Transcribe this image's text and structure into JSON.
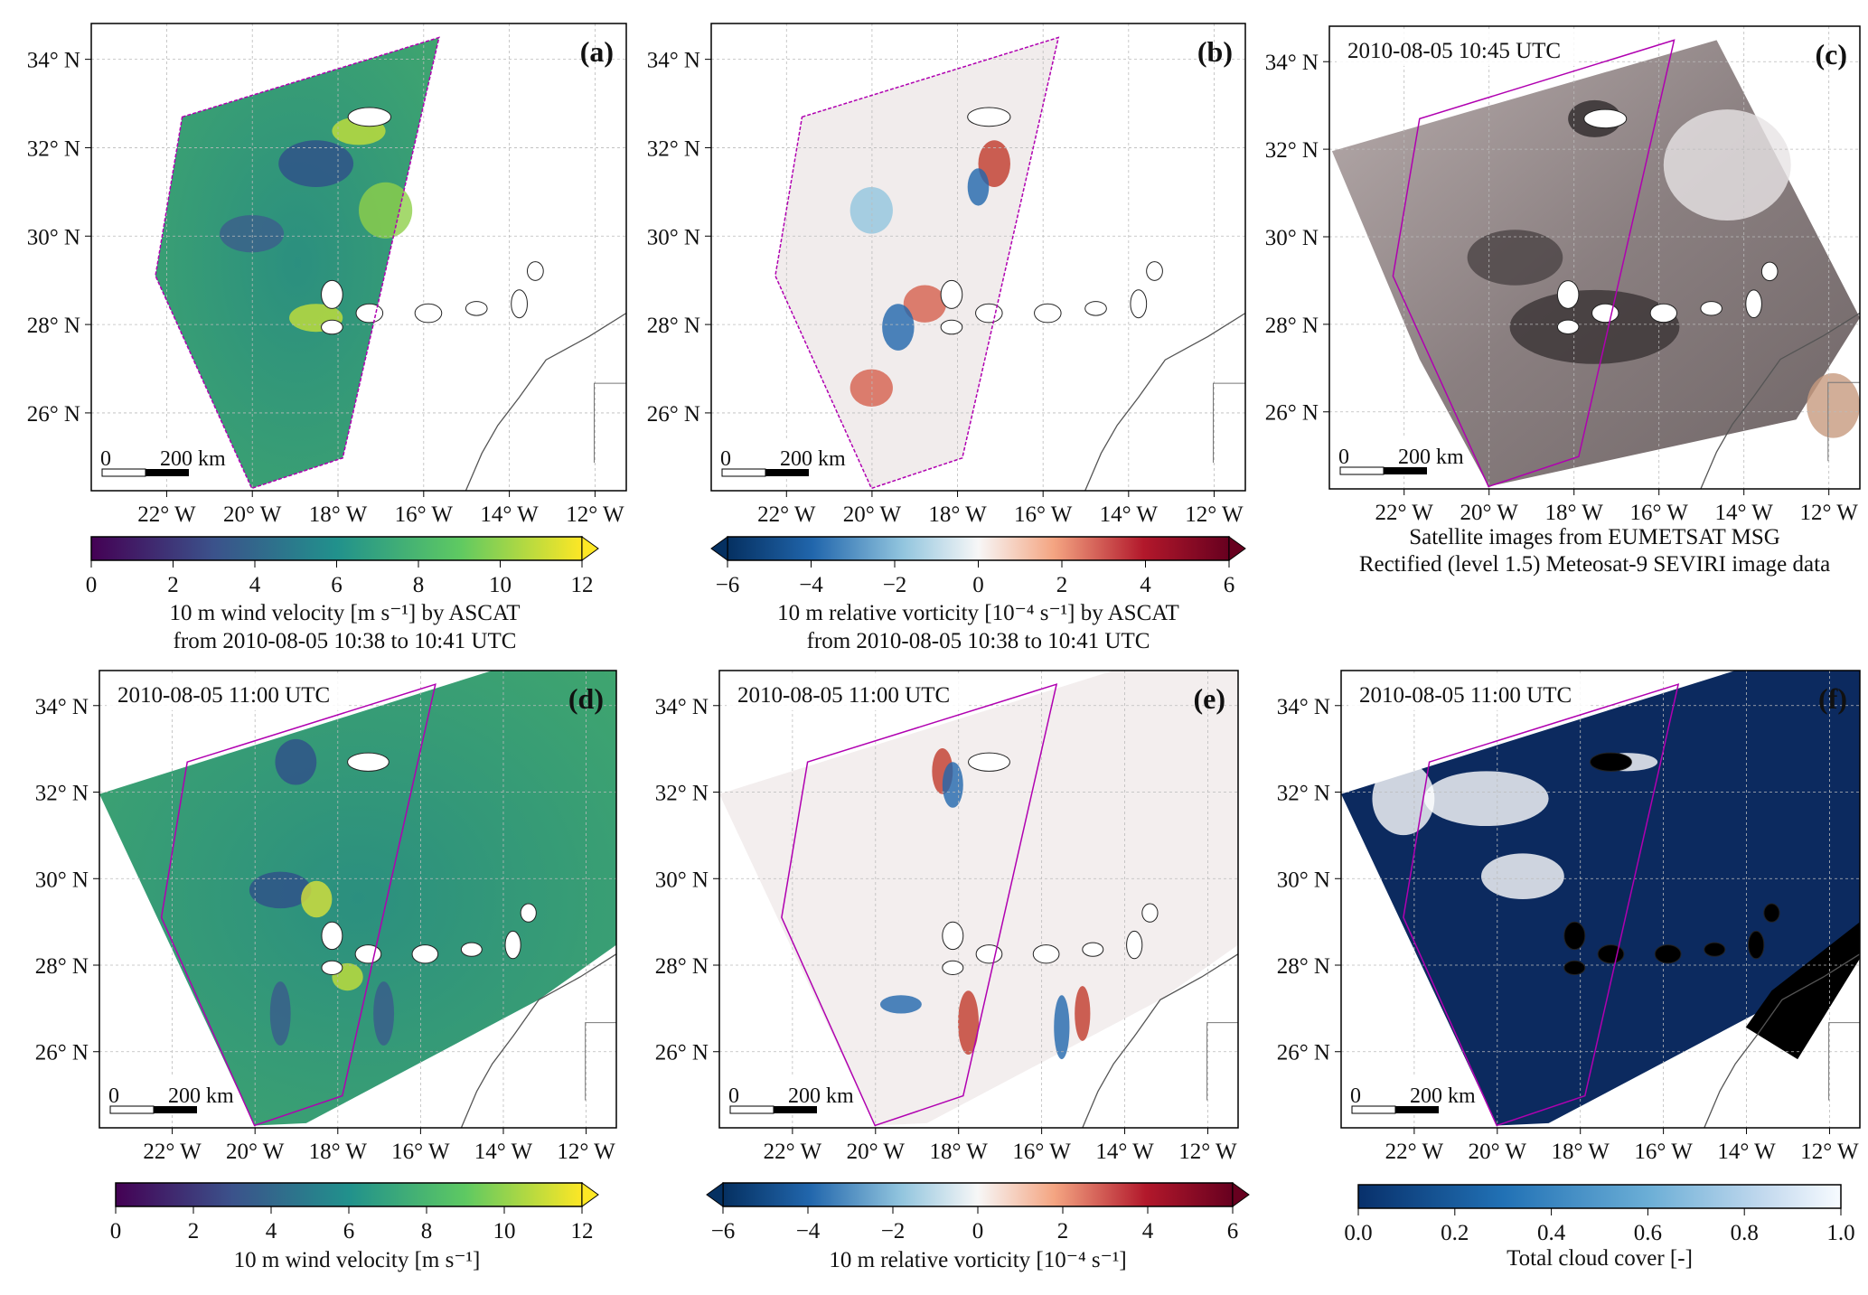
{
  "figure": {
    "lon_ticks": [
      "22° W",
      "20° W",
      "18° W",
      "16° W",
      "14° W",
      "12° W"
    ],
    "lat_ticks": [
      "34° N",
      "32° N",
      "30° N",
      "28° N",
      "26° N"
    ],
    "scale_bar": {
      "zero": "0",
      "distance": "200 km"
    },
    "colors": {
      "swath": "#b000b0",
      "coast": "#555555"
    },
    "panels": [
      {
        "id": "a",
        "label": "(a)",
        "timestamp": null,
        "kind": "wind-ascat",
        "caption": [
          "10 m wind velocity [m s⁻¹] by ASCAT",
          "from 2010-08-05 10:38 to 10:41 UTC"
        ],
        "colorbar": {
          "ticks": [
            "0",
            "2",
            "4",
            "6",
            "8",
            "10",
            "12"
          ],
          "min": 0,
          "max": 12,
          "extend": "max",
          "cmap": "viridis"
        }
      },
      {
        "id": "b",
        "label": "(b)",
        "timestamp": null,
        "kind": "vort-ascat",
        "caption": [
          "10 m relative vorticity [10⁻⁴ s⁻¹] by ASCAT",
          "from 2010-08-05 10:38 to 10:41 UTC"
        ],
        "colorbar": {
          "ticks": [
            "−6",
            "−4",
            "−2",
            "0",
            "2",
            "4",
            "6"
          ],
          "min": -6,
          "max": 6,
          "extend": "both",
          "cmap": "RdBu_r"
        }
      },
      {
        "id": "c",
        "label": "(c)",
        "timestamp": "2010-08-05 10:45 UTC",
        "kind": "satellite",
        "caption": [
          "Satellite images from EUMETSAT MSG",
          "Rectified (level 1.5) Meteosat-9 SEVIRI image data"
        ],
        "colorbar": null
      },
      {
        "id": "d",
        "label": "(d)",
        "timestamp": "2010-08-05 11:00 UTC",
        "kind": "wind-model",
        "caption": [
          "10 m wind velocity [m s⁻¹]"
        ],
        "colorbar": {
          "ticks": [
            "0",
            "2",
            "4",
            "6",
            "8",
            "10",
            "12"
          ],
          "min": 0,
          "max": 12,
          "extend": "max",
          "cmap": "viridis"
        }
      },
      {
        "id": "e",
        "label": "(e)",
        "timestamp": "2010-08-05 11:00 UTC",
        "kind": "vort-model",
        "caption": [
          "10 m relative vorticity [10⁻⁴ s⁻¹]"
        ],
        "colorbar": {
          "ticks": [
            "−6",
            "−4",
            "−2",
            "0",
            "2",
            "4",
            "6"
          ],
          "min": -6,
          "max": 6,
          "extend": "both",
          "cmap": "RdBu_r"
        }
      },
      {
        "id": "f",
        "label": "(f)",
        "timestamp": "2010-08-05 11:00 UTC",
        "kind": "cloud",
        "caption": [
          "Total cloud cover [-]"
        ],
        "colorbar": {
          "ticks": [
            "0.0",
            "0.2",
            "0.4",
            "0.6",
            "0.8",
            "1.0"
          ],
          "min": 0,
          "max": 1,
          "extend": "neither",
          "cmap": "Blues_r"
        }
      }
    ]
  }
}
